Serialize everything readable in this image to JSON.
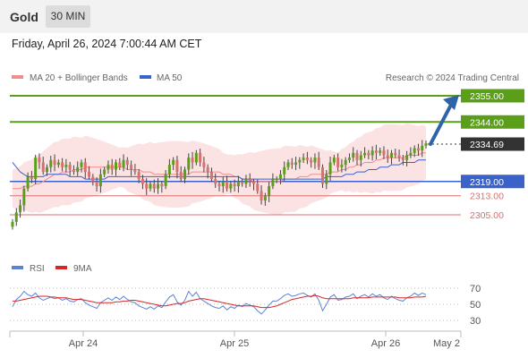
{
  "header": {
    "title": "Gold",
    "timeframe": "30 MIN"
  },
  "datetime": "Friday, April 26, 2024 7:00:44 AM CET",
  "source": "Research © 2024 Trading Central",
  "colors": {
    "bull": "#5a9e1a",
    "bear": "#d96f6f",
    "ma50": "#3a62c9",
    "ma20": "#f28c8c",
    "band_fill": "#fbd9d9",
    "rsi": "#5c82d6",
    "rsi_ma": "#d62728",
    "current": "#333333"
  },
  "chart_data": [
    {
      "type": "candlestick",
      "legend": [
        {
          "name": "MA 20 + Bollinger Bands",
          "color": "#f28c8c"
        },
        {
          "name": "MA 50",
          "color": "#3a62c9"
        }
      ],
      "x_ticks": [
        "Apr 24",
        "Apr 25",
        "Apr 26",
        "May 2"
      ],
      "ylim": [
        2295,
        2362
      ],
      "levels": [
        {
          "label": "2355.00",
          "value": 2355.0,
          "kind": "resistance"
        },
        {
          "label": "2344.00",
          "value": 2344.0,
          "kind": "resistance"
        },
        {
          "label": "2334.69",
          "value": 2334.69,
          "kind": "current"
        },
        {
          "label": "2319.00",
          "value": 2319.0,
          "kind": "pivot"
        },
        {
          "label": "2313.00",
          "value": 2313.0,
          "kind": "support"
        },
        {
          "label": "2305.00",
          "value": 2305.0,
          "kind": "support"
        }
      ],
      "projection": {
        "from": 2334.69,
        "to": 2355.0
      },
      "closes": [
        2302,
        2306,
        2309,
        2316,
        2321,
        2320,
        2329,
        2327,
        2323,
        2325,
        2328,
        2326,
        2327,
        2325,
        2326,
        2324,
        2323,
        2325,
        2327,
        2323,
        2321,
        2319,
        2317,
        2322,
        2324,
        2326,
        2324,
        2327,
        2325,
        2328,
        2326,
        2324,
        2323,
        2320,
        2318,
        2316,
        2318,
        2316,
        2318,
        2317,
        2322,
        2326,
        2328,
        2323,
        2320,
        2324,
        2329,
        2327,
        2331,
        2327,
        2325,
        2323,
        2320,
        2318,
        2317,
        2319,
        2316,
        2318,
        2317,
        2319,
        2318,
        2320,
        2319,
        2318,
        2315,
        2311,
        2313,
        2317,
        2320,
        2320,
        2322,
        2325,
        2327,
        2326,
        2327,
        2328,
        2329,
        2328,
        2327,
        2329,
        2325,
        2318,
        2322,
        2327,
        2329,
        2325,
        2326,
        2328,
        2329,
        2331,
        2328,
        2330,
        2331,
        2330,
        2332,
        2331,
        2332,
        2330,
        2329,
        2331,
        2330,
        2329,
        2328,
        2330,
        2331,
        2333,
        2332,
        2334,
        2335
      ],
      "ma20": [
        2316,
        2316,
        2316,
        2317,
        2317,
        2317,
        2318,
        2318,
        2319,
        2320,
        2321,
        2322,
        2322,
        2323,
        2323,
        2323,
        2324,
        2324,
        2324,
        2325,
        2325,
        2325,
        2325,
        2325,
        2325,
        2325,
        2325,
        2325,
        2325,
        2325,
        2324,
        2324,
        2324,
        2324,
        2323,
        2323,
        2323,
        2322,
        2322,
        2322,
        2322,
        2322,
        2322,
        2322,
        2322,
        2322,
        2322,
        2323,
        2323,
        2323,
        2323,
        2323,
        2323,
        2323,
        2323,
        2322,
        2322,
        2322,
        2321,
        2321,
        2320,
        2320,
        2320,
        2319,
        2319,
        2319,
        2319,
        2319,
        2319,
        2319,
        2319,
        2320,
        2320,
        2320,
        2320,
        2321,
        2321,
        2321,
        2322,
        2322,
        2322,
        2322,
        2322,
        2323,
        2323,
        2323,
        2324,
        2324,
        2325,
        2325,
        2326,
        2326,
        2327,
        2327,
        2327,
        2328,
        2328,
        2329,
        2329,
        2329,
        2329,
        2329,
        2329,
        2330,
        2330,
        2330,
        2330,
        2331,
        2331
      ],
      "ma50": [
        2327,
        2325,
        2323,
        2322,
        2321,
        2321,
        2321,
        2321,
        2321,
        2322,
        2322,
        2322,
        2322,
        2322,
        2322,
        2321,
        2321,
        2321,
        2321,
        2320,
        2320,
        2320,
        2320,
        2320,
        2320,
        2321,
        2321,
        2321,
        2321,
        2321,
        2321,
        2321,
        2321,
        2321,
        2321,
        2321,
        2321,
        2321,
        2321,
        2321,
        2321,
        2321,
        2321,
        2321,
        2321,
        2321,
        2321,
        2321,
        2321,
        2321,
        2321,
        2321,
        2321,
        2321,
        2321,
        2321,
        2321,
        2321,
        2321,
        2321,
        2320,
        2320,
        2320,
        2320,
        2320,
        2320,
        2320,
        2320,
        2320,
        2320,
        2320,
        2320,
        2320,
        2320,
        2320,
        2320,
        2320,
        2320,
        2320,
        2320,
        2320,
        2320,
        2321,
        2321,
        2321,
        2321,
        2321,
        2322,
        2322,
        2322,
        2323,
        2323,
        2323,
        2324,
        2324,
        2324,
        2325,
        2325,
        2325,
        2326,
        2326,
        2326,
        2327,
        2327,
        2327,
        2327,
        2328,
        2328,
        2328
      ]
    },
    {
      "type": "line",
      "legend": [
        {
          "name": "RSI",
          "color": "#5c82d6"
        },
        {
          "name": "9MA",
          "color": "#d62728"
        }
      ],
      "y_ticks": [
        70,
        50,
        30
      ],
      "ylim": [
        20,
        80
      ],
      "series": [
        {
          "name": "RSI",
          "values": [
            47,
            56,
            60,
            66,
            62,
            60,
            64,
            58,
            55,
            57,
            59,
            57,
            58,
            55,
            57,
            54,
            53,
            56,
            57,
            52,
            49,
            47,
            45,
            52,
            55,
            58,
            55,
            59,
            56,
            60,
            56,
            53,
            52,
            48,
            46,
            44,
            47,
            44,
            48,
            46,
            53,
            59,
            62,
            53,
            49,
            55,
            66,
            60,
            65,
            57,
            54,
            51,
            48,
            46,
            45,
            48,
            43,
            47,
            45,
            49,
            47,
            51,
            49,
            47,
            42,
            38,
            43,
            49,
            54,
            54,
            57,
            61,
            63,
            60,
            61,
            63,
            64,
            61,
            59,
            63,
            55,
            42,
            50,
            59,
            62,
            55,
            56,
            59,
            60,
            63,
            57,
            60,
            62,
            59,
            63,
            60,
            62,
            58,
            56,
            60,
            57,
            55,
            54,
            58,
            60,
            64,
            61,
            64,
            62
          ]
        },
        {
          "name": "9MA",
          "values": [
            54,
            54,
            55,
            56,
            57,
            58,
            59,
            60,
            60,
            60,
            59,
            59,
            58,
            58,
            58,
            57,
            56,
            56,
            56,
            55,
            54,
            53,
            52,
            52,
            52,
            52,
            52,
            53,
            53,
            54,
            54,
            55,
            55,
            54,
            53,
            52,
            51,
            50,
            49,
            48,
            48,
            49,
            50,
            51,
            51,
            52,
            54,
            55,
            56,
            57,
            57,
            56,
            55,
            54,
            53,
            52,
            51,
            50,
            49,
            48,
            48,
            48,
            48,
            48,
            47,
            46,
            46,
            46,
            47,
            48,
            50,
            52,
            54,
            56,
            57,
            58,
            59,
            60,
            60,
            61,
            60,
            58,
            57,
            57,
            57,
            57,
            57,
            57,
            57,
            58,
            58,
            58,
            58,
            58,
            59,
            59,
            59,
            59,
            59,
            59,
            59,
            58,
            58,
            58,
            58,
            59,
            59,
            59,
            60
          ]
        }
      ]
    }
  ]
}
